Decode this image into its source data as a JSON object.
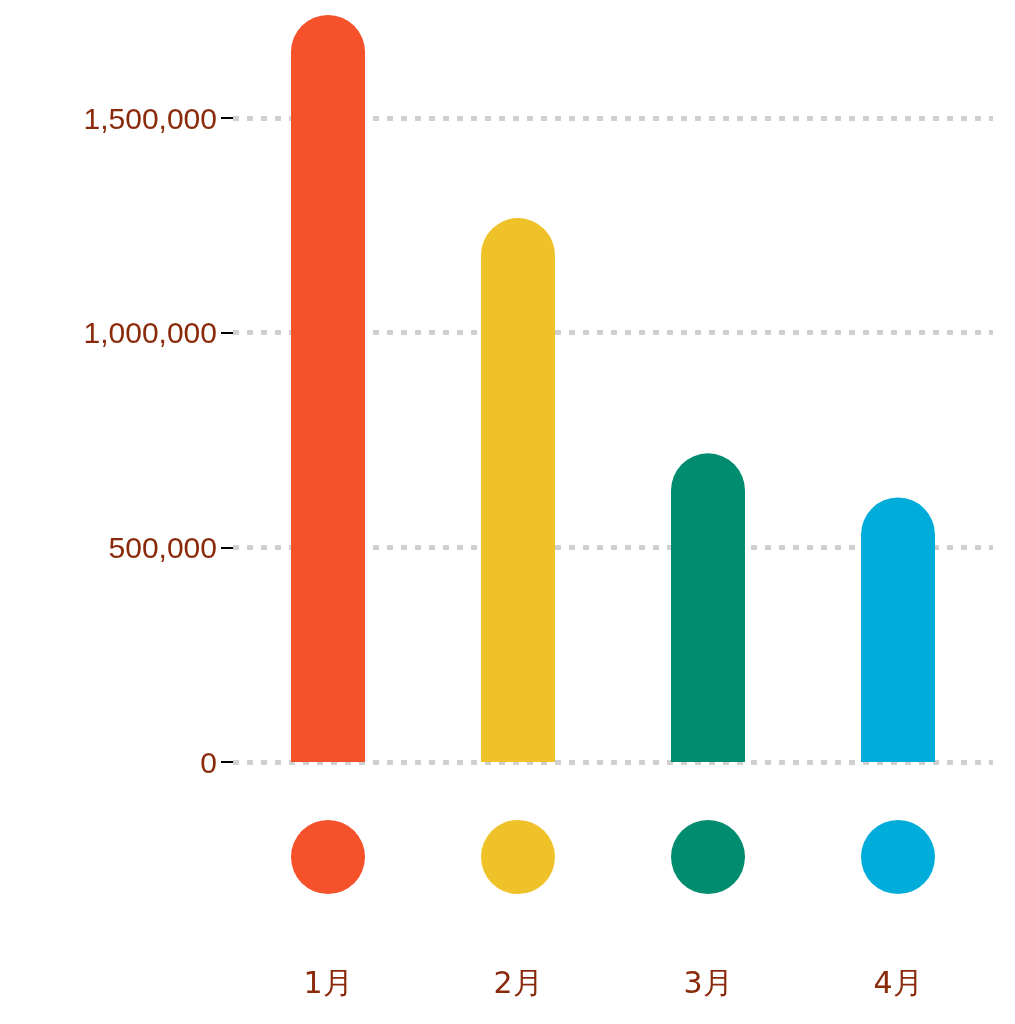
{
  "chart_data": {
    "type": "bar",
    "categories": [
      "1月",
      "2月",
      "3月",
      "4月"
    ],
    "values": [
      1740000,
      1267000,
      719000,
      616000
    ],
    "colors": [
      "#f5522b",
      "#efc229",
      "#008c6e",
      "#00acd9"
    ],
    "ylim": [
      0,
      1740000
    ],
    "yticks": [
      {
        "value": 0,
        "label": "0"
      },
      {
        "value": 500000,
        "label": "500,000"
      },
      {
        "value": 1000000,
        "label": "1,000,000"
      },
      {
        "value": 1500000,
        "label": "1,500,000"
      }
    ],
    "grid": "y"
  }
}
